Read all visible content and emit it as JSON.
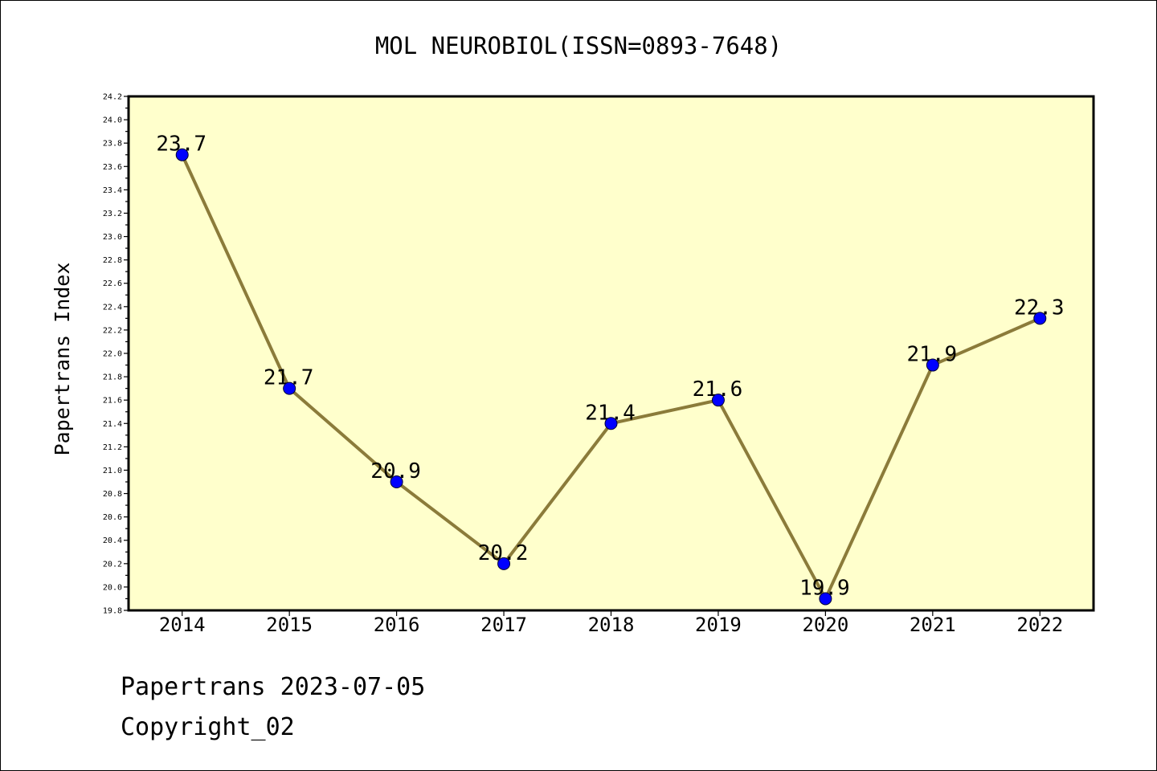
{
  "chart_data": {
    "type": "line",
    "title": "MOL NEUROBIOL(ISSN=0893-7648)",
    "ylabel": "Papertrans Index",
    "x": [
      2014,
      2015,
      2016,
      2017,
      2018,
      2019,
      2020,
      2021,
      2022
    ],
    "series": [
      {
        "values": [
          23.7,
          21.7,
          20.9,
          20.2,
          21.4,
          21.6,
          19.9,
          21.9,
          22.3
        ],
        "line_color": "#8B7B3A",
        "marker_color": "#0000FF"
      }
    ],
    "data_labels": [
      "23.7",
      "21.7",
      "20.9",
      "20.2",
      "21.4",
      "21.6",
      "19.9",
      "21.9",
      "22.3"
    ],
    "xlim": [
      2013.5,
      2022.5
    ],
    "ylim": [
      19.8,
      24.2
    ],
    "y_tick_labels": [
      "19.8",
      "20.0",
      "20.2",
      "20.4",
      "20.6",
      "20.8",
      "21.0",
      "21.2",
      "21.4",
      "21.6",
      "21.8",
      "22.0",
      "22.2",
      "22.4",
      "22.6",
      "22.8",
      "23.0",
      "23.2",
      "23.4",
      "23.6",
      "23.8",
      "24.0",
      "24.2"
    ],
    "grid": false,
    "plot_background": "#FFFFCC"
  },
  "footer": {
    "date_line": "Papertrans 2023-07-05",
    "copyright_line": "Copyright_02"
  }
}
